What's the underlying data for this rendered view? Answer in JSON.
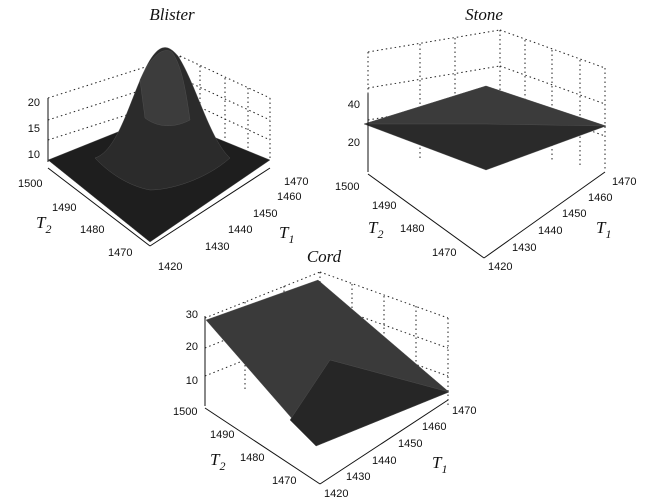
{
  "chart_data": [
    {
      "type": "surface3d",
      "title": "Blister",
      "x_axis": {
        "symbol": "T",
        "subscript": "1",
        "ticks": [
          "1420",
          "1430",
          "1440",
          "1450",
          "1460",
          "1470"
        ]
      },
      "y_axis": {
        "symbol": "T",
        "subscript": "2",
        "ticks": [
          "1470",
          "1480",
          "1490",
          "1500"
        ]
      },
      "z_axis": {
        "ticks": [
          "10",
          "15",
          "20"
        ]
      },
      "surface": {
        "shape": "gaussian-peak",
        "peak_z": 24,
        "base_z": 9,
        "peak_at": {
          "T1": 1445,
          "T2": 1485
        }
      },
      "surface_color": "#1e1e1e",
      "grid": true
    },
    {
      "type": "surface3d",
      "title": "Stone",
      "x_axis": {
        "symbol": "T",
        "subscript": "1",
        "ticks": [
          "1420",
          "1430",
          "1440",
          "1450",
          "1460",
          "1470"
        ]
      },
      "y_axis": {
        "symbol": "T",
        "subscript": "2",
        "ticks": [
          "1470",
          "1480",
          "1490",
          "1500"
        ]
      },
      "z_axis": {
        "ticks": [
          "20",
          "40"
        ]
      },
      "surface": {
        "shape": "tilted-plane",
        "z_range": [
          20,
          36
        ]
      },
      "surface_color": "#2a2a2a",
      "grid": true
    },
    {
      "type": "surface3d",
      "title": "Cord",
      "x_axis": {
        "symbol": "T",
        "subscript": "1",
        "ticks": [
          "1420",
          "1430",
          "1440",
          "1450",
          "1460",
          "1470"
        ]
      },
      "y_axis": {
        "symbol": "T",
        "subscript": "2",
        "ticks": [
          "1470",
          "1480",
          "1490",
          "1500"
        ]
      },
      "z_axis": {
        "ticks": [
          "10",
          "20",
          "30"
        ]
      },
      "surface": {
        "shape": "tilted-plane",
        "z_range": [
          7,
          30
        ]
      },
      "surface_color": "#3a3a3a",
      "grid": true
    }
  ]
}
